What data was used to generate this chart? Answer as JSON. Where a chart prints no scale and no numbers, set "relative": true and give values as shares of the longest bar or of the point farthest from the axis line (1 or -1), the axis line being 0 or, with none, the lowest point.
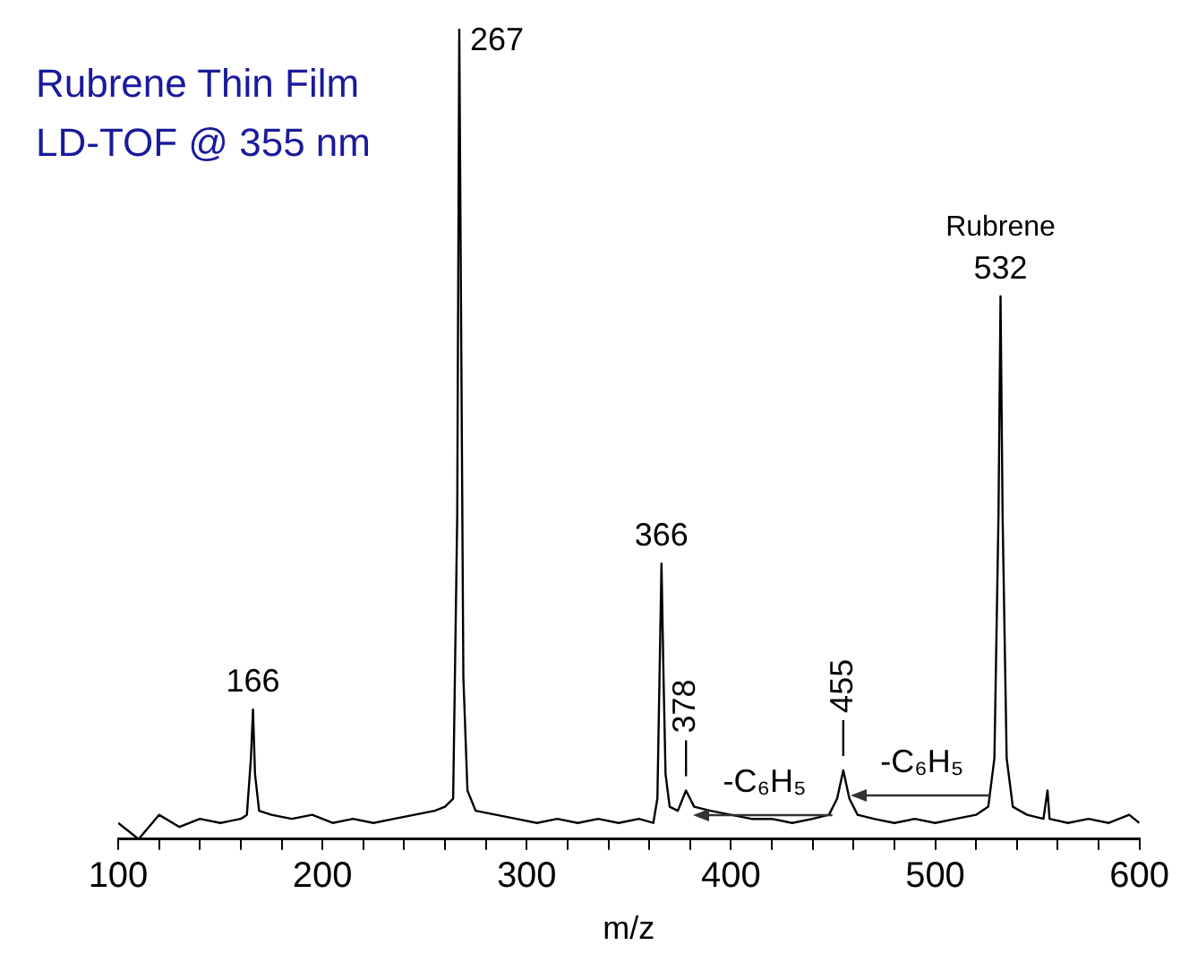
{
  "chart_data": {
    "type": "line",
    "title": "Rubrene Thin Film",
    "subtitle": "LD-TOF @ 355 nm",
    "xlabel": "m/z",
    "relative": true,
    "x": [
      100,
      110,
      120,
      130,
      140,
      150,
      160,
      163,
      165,
      166,
      167,
      169,
      175,
      185,
      195,
      205,
      215,
      225,
      235,
      245,
      255,
      260,
      264,
      266,
      267,
      268,
      269,
      271,
      275,
      285,
      295,
      305,
      315,
      325,
      335,
      345,
      355,
      362,
      364,
      366,
      367,
      368,
      370,
      374,
      378,
      382,
      390,
      400,
      410,
      420,
      430,
      440,
      448,
      452,
      455,
      458,
      462,
      470,
      480,
      490,
      500,
      510,
      520,
      526,
      529,
      531,
      532,
      533,
      535,
      538,
      545,
      553,
      555,
      556,
      565,
      575,
      585,
      595,
      600
    ],
    "series": [
      {
        "color": "#000000",
        "values": [
          0.02,
          0,
          0.03,
          0.015,
          0.025,
          0.02,
          0.025,
          0.03,
          0.1,
          0.16,
          0.08,
          0.035,
          0.03,
          0.025,
          0.03,
          0.02,
          0.025,
          0.02,
          0.025,
          0.03,
          0.035,
          0.04,
          0.05,
          0.4,
          1,
          0.6,
          0.2,
          0.06,
          0.035,
          0.03,
          0.025,
          0.02,
          0.025,
          0.02,
          0.025,
          0.02,
          0.025,
          0.02,
          0.05,
          0.34,
          0.2,
          0.08,
          0.04,
          0.035,
          0.06,
          0.04,
          0.035,
          0.03,
          0.025,
          0.025,
          0.02,
          0.025,
          0.03,
          0.05,
          0.085,
          0.05,
          0.03,
          0.025,
          0.02,
          0.025,
          0.02,
          0.025,
          0.03,
          0.04,
          0.1,
          0.4,
          0.67,
          0.4,
          0.1,
          0.04,
          0.03,
          0.025,
          0.06,
          0.025,
          0.02,
          0.025,
          0.02,
          0.03,
          0.02
        ]
      }
    ],
    "xlim": [
      100,
      600
    ],
    "xticks": [
      100,
      {
        "value": 120,
        "label": null
      },
      {
        "value": 140,
        "label": null
      },
      {
        "value": 160,
        "label": null
      },
      {
        "value": 180,
        "label": null
      },
      200,
      {
        "value": 220,
        "label": null
      },
      {
        "value": 240,
        "label": null
      },
      {
        "value": 260,
        "label": null
      },
      {
        "value": 280,
        "label": null
      },
      300,
      {
        "value": 320,
        "label": null
      },
      {
        "value": 340,
        "label": null
      },
      {
        "value": 360,
        "label": null
      },
      {
        "value": 380,
        "label": null
      },
      400,
      {
        "value": 420,
        "label": null
      },
      {
        "value": 440,
        "label": null
      },
      {
        "value": 460,
        "label": null
      },
      {
        "value": 480,
        "label": null
      },
      500,
      {
        "value": 520,
        "label": null
      },
      {
        "value": 540,
        "label": null
      },
      {
        "value": 560,
        "label": null
      },
      {
        "value": 580,
        "label": null
      },
      600
    ],
    "annotations": [
      {
        "text": "166",
        "x": 166,
        "y": 0.16
      },
      {
        "text": "267",
        "x": 267,
        "y": 1
      },
      {
        "text": "366",
        "x": 366,
        "y": 0.34
      },
      {
        "text": "378",
        "x": 378,
        "y": 0.06
      },
      {
        "text": "455",
        "x": 455,
        "y": 0.085
      },
      {
        "text": "532",
        "x": 532,
        "y": 0.67
      },
      {
        "text": "Rubrene",
        "x": 532,
        "y": 0.67
      },
      "-C₆H₅",
      "-C₆H₅"
    ],
    "grid": false,
    "legend": false,
    "marker": "none",
    "line_style": "solid"
  }
}
